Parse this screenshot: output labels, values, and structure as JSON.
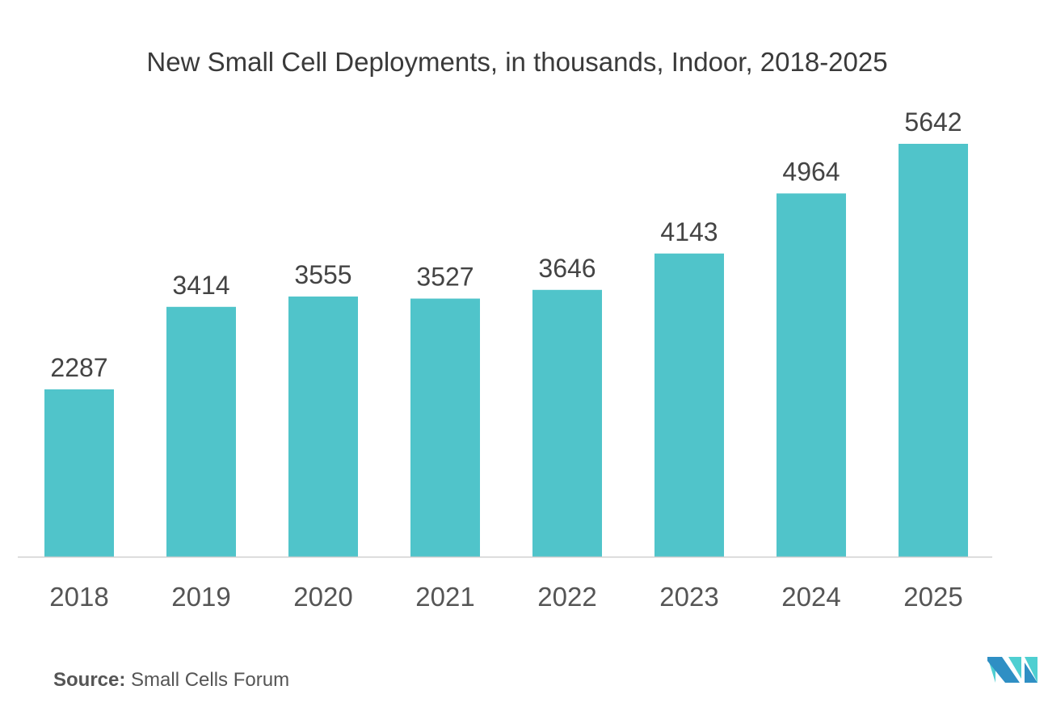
{
  "chart_data": {
    "type": "bar",
    "title": "New Small Cell Deployments, in thousands, Indoor, 2018-2025",
    "categories": [
      "2018",
      "2019",
      "2020",
      "2021",
      "2022",
      "2023",
      "2024",
      "2025"
    ],
    "values": [
      2287,
      3414,
      3555,
      3527,
      3646,
      4143,
      4964,
      5642
    ],
    "xlabel": "",
    "ylabel": "",
    "ylim": [
      0,
      6000
    ],
    "grid": false,
    "data_labels": true,
    "bar_color": "#50C4CA"
  },
  "source": {
    "label": "Source:",
    "text": "Small Cells Forum"
  },
  "logo": {
    "colors": [
      "#2F8FC4",
      "#4FCFD1"
    ]
  }
}
